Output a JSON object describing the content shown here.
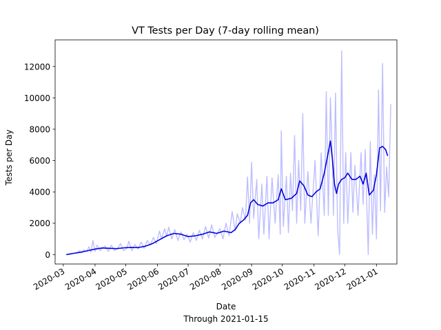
{
  "chart_data": {
    "type": "line",
    "title": "VT Tests per Day (7-day rolling mean)",
    "xlabel": "Date",
    "xlabel_sub": "Through 2021-01-15",
    "ylabel": "Tests per Day",
    "ylim": [
      -600,
      13700
    ],
    "xlim": [
      "2020-02-22",
      "2021-01-21"
    ],
    "grid": false,
    "legend": "none",
    "y_ticks": [
      0,
      2000,
      4000,
      6000,
      8000,
      10000,
      12000
    ],
    "x_ticks": [
      "2020-03",
      "2020-04",
      "2020-05",
      "2020-06",
      "2020-07",
      "2020-08",
      "2020-09",
      "2020-10",
      "2020-11",
      "2020-12",
      "2021-01"
    ],
    "colors": {
      "daily": "#bdbdff",
      "rolling": "#0000dd"
    },
    "series": [
      {
        "kind": "daily",
        "points": [
          [
            "2020-03-04",
            0
          ],
          [
            "2020-03-10",
            60
          ],
          [
            "2020-03-14",
            120
          ],
          [
            "2020-03-17",
            250
          ],
          [
            "2020-03-19",
            100
          ],
          [
            "2020-03-21",
            300
          ],
          [
            "2020-03-24",
            200
          ],
          [
            "2020-03-26",
            500
          ],
          [
            "2020-03-28",
            150
          ],
          [
            "2020-03-30",
            900
          ],
          [
            "2020-04-01",
            200
          ],
          [
            "2020-04-03",
            600
          ],
          [
            "2020-04-06",
            250
          ],
          [
            "2020-04-08",
            400
          ],
          [
            "2020-04-11",
            550
          ],
          [
            "2020-04-14",
            200
          ],
          [
            "2020-04-17",
            600
          ],
          [
            "2020-04-20",
            250
          ],
          [
            "2020-04-23",
            400
          ],
          [
            "2020-04-26",
            700
          ],
          [
            "2020-04-29",
            250
          ],
          [
            "2020-05-02",
            400
          ],
          [
            "2020-05-04",
            850
          ],
          [
            "2020-05-07",
            250
          ],
          [
            "2020-05-10",
            650
          ],
          [
            "2020-05-13",
            350
          ],
          [
            "2020-05-16",
            800
          ],
          [
            "2020-05-19",
            400
          ],
          [
            "2020-05-22",
            900
          ],
          [
            "2020-05-25",
            600
          ],
          [
            "2020-05-28",
            1100
          ],
          [
            "2020-05-31",
            700
          ],
          [
            "2020-06-03",
            1500
          ],
          [
            "2020-06-05",
            1000
          ],
          [
            "2020-06-08",
            1650
          ],
          [
            "2020-06-10",
            1150
          ],
          [
            "2020-06-12",
            1750
          ],
          [
            "2020-06-15",
            1000
          ],
          [
            "2020-06-18",
            1600
          ],
          [
            "2020-06-21",
            900
          ],
          [
            "2020-06-24",
            1450
          ],
          [
            "2020-06-27",
            950
          ],
          [
            "2020-06-30",
            1300
          ],
          [
            "2020-07-03",
            800
          ],
          [
            "2020-07-06",
            1400
          ],
          [
            "2020-07-09",
            900
          ],
          [
            "2020-07-12",
            1550
          ],
          [
            "2020-07-15",
            1000
          ],
          [
            "2020-07-18",
            1800
          ],
          [
            "2020-07-21",
            1050
          ],
          [
            "2020-07-24",
            1900
          ],
          [
            "2020-07-27",
            1100
          ],
          [
            "2020-08-01",
            1650
          ],
          [
            "2020-08-04",
            1000
          ],
          [
            "2020-08-07",
            2000
          ],
          [
            "2020-08-10",
            1200
          ],
          [
            "2020-08-13",
            2750
          ],
          [
            "2020-08-16",
            1500
          ],
          [
            "2020-08-18",
            2600
          ],
          [
            "2020-08-21",
            2000
          ],
          [
            "2020-08-23",
            3000
          ],
          [
            "2020-08-26",
            2200
          ],
          [
            "2020-08-28",
            4950
          ],
          [
            "2020-08-30",
            2000
          ],
          [
            "2020-09-01",
            5900
          ],
          [
            "2020-09-03",
            2300
          ],
          [
            "2020-09-06",
            4800
          ],
          [
            "2020-09-08",
            1000
          ],
          [
            "2020-09-11",
            4500
          ],
          [
            "2020-09-13",
            1300
          ],
          [
            "2020-09-16",
            5000
          ],
          [
            "2020-09-18",
            1000
          ],
          [
            "2020-09-21",
            4900
          ],
          [
            "2020-09-24",
            2000
          ],
          [
            "2020-09-27",
            5100
          ],
          [
            "2020-09-29",
            1300
          ],
          [
            "2020-09-30",
            7900
          ],
          [
            "2020-10-02",
            1800
          ],
          [
            "2020-10-05",
            5000
          ],
          [
            "2020-10-07",
            1400
          ],
          [
            "2020-10-09",
            5200
          ],
          [
            "2020-10-11",
            2800
          ],
          [
            "2020-10-13",
            7600
          ],
          [
            "2020-10-15",
            2000
          ],
          [
            "2020-10-17",
            6000
          ],
          [
            "2020-10-19",
            2800
          ],
          [
            "2020-10-21",
            9000
          ],
          [
            "2020-10-23",
            2000
          ],
          [
            "2020-10-26",
            5300
          ],
          [
            "2020-10-29",
            2000
          ],
          [
            "2020-11-02",
            6000
          ],
          [
            "2020-11-05",
            1200
          ],
          [
            "2020-11-08",
            6500
          ],
          [
            "2020-11-11",
            2500
          ],
          [
            "2020-11-13",
            10400
          ],
          [
            "2020-11-15",
            2500
          ],
          [
            "2020-11-17",
            10000
          ],
          [
            "2020-11-19",
            6000
          ],
          [
            "2020-11-20",
            2500
          ],
          [
            "2020-11-22",
            10300
          ],
          [
            "2020-11-24",
            1700
          ],
          [
            "2020-11-26",
            0
          ],
          [
            "2020-11-28",
            13000
          ],
          [
            "2020-11-30",
            2000
          ],
          [
            "2020-12-02",
            6500
          ],
          [
            "2020-12-04",
            2000
          ],
          [
            "2020-12-07",
            6500
          ],
          [
            "2020-12-09",
            2700
          ],
          [
            "2020-12-11",
            5700
          ],
          [
            "2020-12-14",
            2500
          ],
          [
            "2020-12-17",
            6500
          ],
          [
            "2020-12-19",
            3200
          ],
          [
            "2020-12-21",
            6700
          ],
          [
            "2020-12-24",
            0
          ],
          [
            "2020-12-26",
            7200
          ],
          [
            "2020-12-28",
            1300
          ],
          [
            "2020-12-30",
            5100
          ],
          [
            "2021-01-01",
            1000
          ],
          [
            "2021-01-03",
            10500
          ],
          [
            "2021-01-05",
            2800
          ],
          [
            "2021-01-07",
            12200
          ],
          [
            "2021-01-09",
            2700
          ],
          [
            "2021-01-11",
            5600
          ],
          [
            "2021-01-13",
            3700
          ],
          [
            "2021-01-15",
            9600
          ]
        ]
      },
      {
        "kind": "rolling",
        "points": [
          [
            "2020-03-04",
            0
          ],
          [
            "2020-03-11",
            80
          ],
          [
            "2020-03-18",
            150
          ],
          [
            "2020-03-25",
            250
          ],
          [
            "2020-04-01",
            350
          ],
          [
            "2020-04-08",
            420
          ],
          [
            "2020-04-15",
            400
          ],
          [
            "2020-04-22",
            380
          ],
          [
            "2020-04-29",
            430
          ],
          [
            "2020-05-06",
            460
          ],
          [
            "2020-05-13",
            450
          ],
          [
            "2020-05-20",
            530
          ],
          [
            "2020-05-27",
            700
          ],
          [
            "2020-06-03",
            950
          ],
          [
            "2020-06-10",
            1200
          ],
          [
            "2020-06-17",
            1350
          ],
          [
            "2020-06-24",
            1300
          ],
          [
            "2020-07-01",
            1150
          ],
          [
            "2020-07-08",
            1200
          ],
          [
            "2020-07-15",
            1300
          ],
          [
            "2020-07-22",
            1450
          ],
          [
            "2020-07-29",
            1350
          ],
          [
            "2020-08-05",
            1500
          ],
          [
            "2020-08-12",
            1400
          ],
          [
            "2020-08-16",
            1600
          ],
          [
            "2020-08-20",
            2000
          ],
          [
            "2020-08-24",
            2200
          ],
          [
            "2020-08-28",
            2500
          ],
          [
            "2020-08-31",
            3300
          ],
          [
            "2020-09-03",
            3500
          ],
          [
            "2020-09-07",
            3200
          ],
          [
            "2020-09-12",
            3100
          ],
          [
            "2020-09-17",
            3300
          ],
          [
            "2020-09-22",
            3300
          ],
          [
            "2020-09-27",
            3500
          ],
          [
            "2020-09-30",
            4200
          ],
          [
            "2020-10-04",
            3500
          ],
          [
            "2020-10-10",
            3600
          ],
          [
            "2020-10-15",
            3900
          ],
          [
            "2020-10-18",
            4700
          ],
          [
            "2020-10-22",
            4400
          ],
          [
            "2020-10-26",
            3800
          ],
          [
            "2020-10-30",
            3700
          ],
          [
            "2020-11-03",
            4000
          ],
          [
            "2020-11-07",
            4200
          ],
          [
            "2020-11-11",
            5200
          ],
          [
            "2020-11-14",
            6200
          ],
          [
            "2020-11-17",
            7250
          ],
          [
            "2020-11-19",
            6100
          ],
          [
            "2020-11-21",
            4500
          ],
          [
            "2020-11-23",
            3900
          ],
          [
            "2020-11-25",
            4500
          ],
          [
            "2020-11-28",
            4800
          ],
          [
            "2020-12-01",
            4900
          ],
          [
            "2020-12-04",
            5200
          ],
          [
            "2020-12-08",
            4800
          ],
          [
            "2020-12-12",
            4800
          ],
          [
            "2020-12-16",
            5000
          ],
          [
            "2020-12-19",
            4500
          ],
          [
            "2020-12-22",
            5200
          ],
          [
            "2020-12-25",
            3800
          ],
          [
            "2020-12-29",
            4100
          ],
          [
            "2021-01-01",
            5100
          ],
          [
            "2021-01-04",
            6800
          ],
          [
            "2021-01-07",
            6900
          ],
          [
            "2021-01-10",
            6700
          ],
          [
            "2021-01-12",
            6300
          ]
        ]
      }
    ]
  }
}
